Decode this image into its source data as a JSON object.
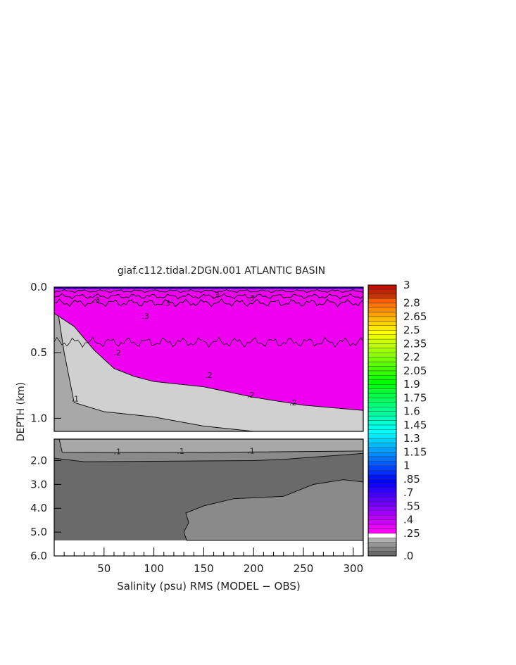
{
  "chart_data": {
    "type": "heatmap",
    "title": "giaf.c112.tidal.2DGN.001 ATLANTIC BASIN",
    "xlabel": "Salinity (psu) RMS (MODEL − OBS)",
    "ylabel": "DEPTH (km)",
    "xlim": [
      0,
      310
    ],
    "ylim_upper": [
      0.0,
      1.1
    ],
    "ylim_lower": [
      1.1,
      6.0
    ],
    "x_ticks": [
      "50",
      "100",
      "150",
      "200",
      "250",
      "300"
    ],
    "y_ticks_upper": [
      "0.0",
      "0.5",
      "1.0"
    ],
    "y_ticks_lower": [
      "2.0",
      "3.0",
      "4.0",
      "5.0",
      "6.0"
    ],
    "contour_levels": [
      0.0,
      0.05,
      0.1,
      0.15,
      0.2,
      0.25,
      0.3,
      0.35,
      0.4,
      0.45,
      0.5,
      0.55,
      0.6,
      0.65,
      0.7,
      0.75,
      0.8,
      0.85,
      0.9,
      0.95,
      1.0,
      1.05,
      1.1,
      1.15,
      1.2,
      1.25,
      1.3,
      1.35,
      1.4,
      1.45,
      1.5,
      1.55,
      1.6,
      1.65,
      1.7,
      1.75,
      1.8,
      1.85,
      1.9,
      1.95,
      2.0,
      2.05,
      2.1,
      2.15,
      2.2,
      2.25,
      2.3,
      2.35,
      2.4,
      2.45,
      2.5,
      2.55,
      2.6,
      2.65,
      2.7,
      2.75,
      2.8,
      2.85,
      2.9,
      2.95,
      3.0
    ],
    "colorbar_labels": [
      ".0",
      ".25",
      ".4",
      ".55",
      ".7",
      ".85",
      "1",
      "1.15",
      "1.3",
      "1.45",
      "1.6",
      "1.75",
      "1.9",
      "2.05",
      "2.2",
      "2.35",
      "2.5",
      "2.65",
      "2.8",
      "3"
    ],
    "contour_labels": [
      ".3",
      ".3",
      ".3",
      ".3",
      ".3",
      ".2",
      ".2",
      ".2",
      ".2",
      ".1",
      ".1",
      ".1",
      ".1"
    ],
    "regions": {
      "upper_boundary_02_depth": {
        "x": [
          0,
          20,
          40,
          60,
          80,
          100,
          150,
          200,
          250,
          310
        ],
        "y": [
          0.2,
          0.3,
          0.48,
          0.62,
          0.68,
          0.72,
          0.76,
          0.84,
          0.9,
          0.94
        ]
      },
      "upper_boundary_01_depth": {
        "x": [
          0,
          10,
          20,
          50,
          100,
          150,
          200,
          230,
          310
        ],
        "y": [
          0.0,
          0.5,
          0.88,
          0.95,
          0.99,
          1.06,
          1.1,
          1.1,
          1.1
        ]
      },
      "deep_boundary_01_depth": {
        "x": [
          0,
          310
        ],
        "y": [
          1.65,
          1.6
        ]
      }
    },
    "colors": {
      "band_025_030": "#f000f0",
      "band_020_025": "#d0d0d0",
      "band_010_015": "#a8a8a8",
      "band_005_010": "#8a8a8a",
      "band_000_005": "#6a6a6a",
      "surface_high": "#4000c0"
    }
  }
}
